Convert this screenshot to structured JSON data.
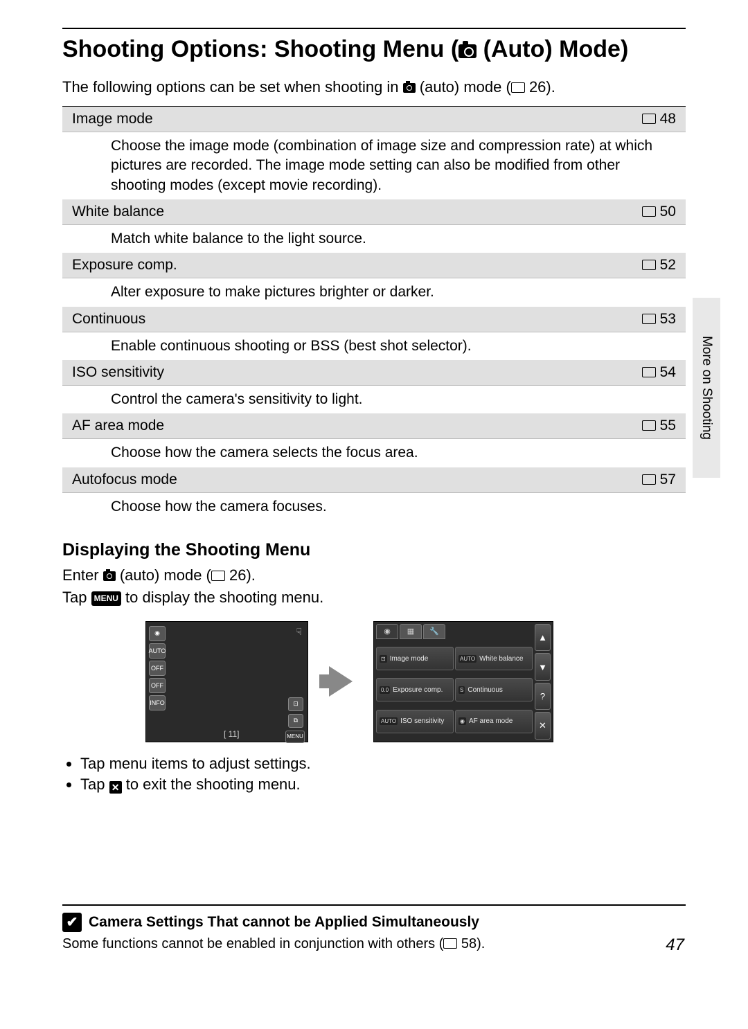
{
  "sidebar_label": "More on Shooting",
  "title_pre": "Shooting Options: Shooting Menu (",
  "title_post": " (Auto) Mode)",
  "intro_pre": "The following options can be set when shooting in ",
  "intro_mid": " (auto) mode (",
  "intro_ref": " 26).",
  "options": [
    {
      "name": "Image mode",
      "ref": "48",
      "desc": "Choose the image mode (combination of image size and compression rate) at which pictures are recorded. The image mode setting can also be modified from other shooting modes (except movie recording)."
    },
    {
      "name": "White balance",
      "ref": "50",
      "desc": "Match white balance to the light source."
    },
    {
      "name": "Exposure comp.",
      "ref": "52",
      "desc": "Alter exposure to make pictures brighter or darker."
    },
    {
      "name": "Continuous",
      "ref": "53",
      "desc": "Enable continuous shooting or BSS (best shot selector)."
    },
    {
      "name": "ISO sensitivity",
      "ref": "54",
      "desc": "Control the camera's sensitivity to light."
    },
    {
      "name": "AF area mode",
      "ref": "55",
      "desc": "Choose how the camera selects the focus area."
    },
    {
      "name": "Autofocus mode",
      "ref": "57",
      "desc": "Choose how the camera focuses."
    }
  ],
  "subhead": "Displaying the Shooting Menu",
  "enter_pre": "Enter ",
  "enter_mid": " (auto) mode (",
  "enter_ref": " 26).",
  "tap_pre": "Tap ",
  "tap_menu": "MENU",
  "tap_post": " to display the shooting menu.",
  "lcd1": {
    "icons": [
      "◉",
      "AUTO",
      "OFF",
      "OFF",
      "INFO"
    ],
    "right": [
      "⊡",
      "⧉"
    ],
    "menu": "MENU",
    "counter": "[   11]"
  },
  "lcd2": {
    "cells": [
      {
        "tag": "⊡",
        "label": "Image mode"
      },
      {
        "tag": "AUTO",
        "label": "White balance"
      },
      {
        "tag": "0.0",
        "label": "Exposure comp."
      },
      {
        "tag": "S",
        "label": "Continuous"
      },
      {
        "tag": "AUTO",
        "label": "ISO sensitivity"
      },
      {
        "tag": "◉",
        "label": "AF area mode"
      }
    ],
    "side": [
      "▲",
      "▼",
      "?",
      "✕"
    ]
  },
  "bullets": {
    "b1": "Tap menu items to adjust settings.",
    "b2_pre": "Tap ",
    "b2_x": "✕",
    "b2_post": " to exit the shooting menu."
  },
  "note": {
    "head": "Camera Settings That cannot be Applied Simultaneously",
    "body_pre": "Some functions cannot be enabled in conjunction with others (",
    "body_ref": " 58)."
  },
  "page_number": "47"
}
